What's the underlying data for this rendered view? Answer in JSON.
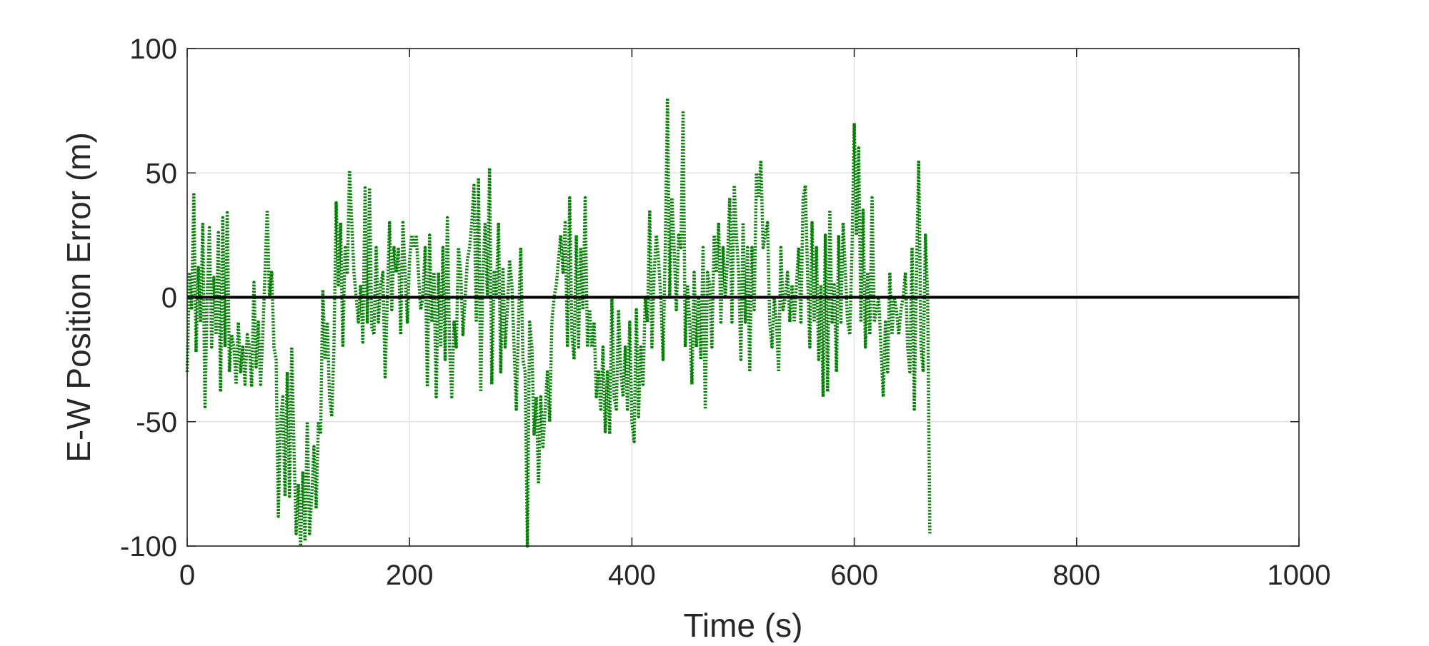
{
  "chart_data": {
    "type": "line",
    "title": "",
    "xlabel": "Time (s)",
    "ylabel": "E-W Position Error (m)",
    "xlim": [
      0,
      1000
    ],
    "ylim": [
      -100,
      100
    ],
    "x_ticks": [
      0,
      200,
      400,
      600,
      800,
      1000
    ],
    "y_ticks": [
      -100,
      -50,
      0,
      50,
      100
    ],
    "x_tick_labels": [
      "0",
      "200",
      "400",
      "600",
      "800",
      "1000"
    ],
    "y_tick_labels": [
      "-100",
      "-50",
      "0",
      "50",
      "100"
    ],
    "grid": true,
    "legend": "none",
    "reference_line": {
      "y": 0,
      "color": "#000000"
    },
    "series": [
      {
        "color": "#008000",
        "style": "dotted",
        "x_start": 0,
        "x_step": 2,
        "values": [
          -30,
          10,
          -5,
          42,
          -22,
          12,
          -10,
          30,
          -44,
          0,
          28,
          -20,
          8,
          -15,
          26,
          -38,
          32,
          -20,
          34,
          -30,
          -15,
          -20,
          -35,
          -10,
          -30,
          -20,
          -35,
          -15,
          -20,
          -36,
          6,
          -28,
          -10,
          -35,
          -15,
          10,
          35,
          0,
          10,
          -20,
          -25,
          -88,
          -50,
          -40,
          -80,
          -30,
          -80,
          -20,
          -60,
          -95,
          -75,
          -100,
          -70,
          -98,
          -50,
          -95,
          -80,
          -60,
          -85,
          -50,
          -55,
          3,
          -25,
          -10,
          -40,
          -48,
          -20,
          38,
          5,
          30,
          -20,
          20,
          10,
          51,
          30,
          10,
          0,
          -10,
          5,
          -18,
          44,
          -10,
          44,
          -12,
          -15,
          20,
          -10,
          5,
          10,
          -32,
          0,
          30,
          -5,
          20,
          10,
          20,
          -15,
          30,
          10,
          -10,
          15,
          25,
          20,
          25,
          10,
          -5,
          0,
          20,
          -36,
          25,
          -10,
          10,
          -40,
          10,
          -20,
          20,
          -25,
          32,
          -20,
          -40,
          -10,
          -20,
          20,
          10,
          -15,
          0,
          15,
          20,
          30,
          45,
          -10,
          48,
          -38,
          10,
          30,
          0,
          52,
          -35,
          10,
          0,
          30,
          -30,
          12,
          -20,
          -5,
          15,
          5,
          -20,
          -45,
          -10,
          20,
          -25,
          -30,
          -100,
          -10,
          -20,
          -55,
          -40,
          -75,
          -40,
          -60,
          -45,
          -30,
          -50,
          -10,
          0,
          5,
          15,
          25,
          10,
          30,
          -20,
          40,
          -15,
          -25,
          25,
          -20,
          20,
          -5,
          40,
          -20,
          -5,
          -20,
          -10,
          -40,
          -30,
          -45,
          -20,
          -54,
          -30,
          -55,
          0,
          -40,
          -45,
          -5,
          -30,
          -40,
          -20,
          -45,
          -10,
          -50,
          -58,
          -5,
          -48,
          -20,
          -35,
          0,
          -10,
          35,
          -20,
          10,
          25,
          15,
          0,
          -25,
          20,
          80,
          0,
          40,
          20,
          -5,
          25,
          20,
          75,
          -20,
          5,
          -10,
          -35,
          10,
          -20,
          0,
          -25,
          20,
          -45,
          10,
          5,
          -20,
          25,
          10,
          30,
          -10,
          20,
          0,
          15,
          40,
          -10,
          45,
          25,
          10,
          -25,
          30,
          -10,
          20,
          -30,
          20,
          -5,
          50,
          40,
          55,
          20,
          25,
          30,
          -10,
          -20,
          0,
          -10,
          -30,
          20,
          -5,
          0,
          10,
          -10,
          5,
          -10,
          5,
          20,
          -10,
          40,
          45,
          10,
          -20,
          30,
          -10,
          20,
          -25,
          5,
          -40,
          25,
          -38,
          35,
          -10,
          5,
          -30,
          25,
          -10,
          30,
          10,
          -10,
          -15,
          20,
          70,
          25,
          60,
          -10,
          35,
          -20,
          10,
          -15,
          40,
          -10,
          -5,
          0,
          -20,
          -40,
          -10,
          -30,
          10,
          -15,
          0,
          -5,
          -15,
          -5,
          0,
          10,
          -20,
          -30,
          20,
          -45,
          10,
          55,
          -20,
          -30,
          25,
          0,
          -95
        ]
      }
    ]
  }
}
